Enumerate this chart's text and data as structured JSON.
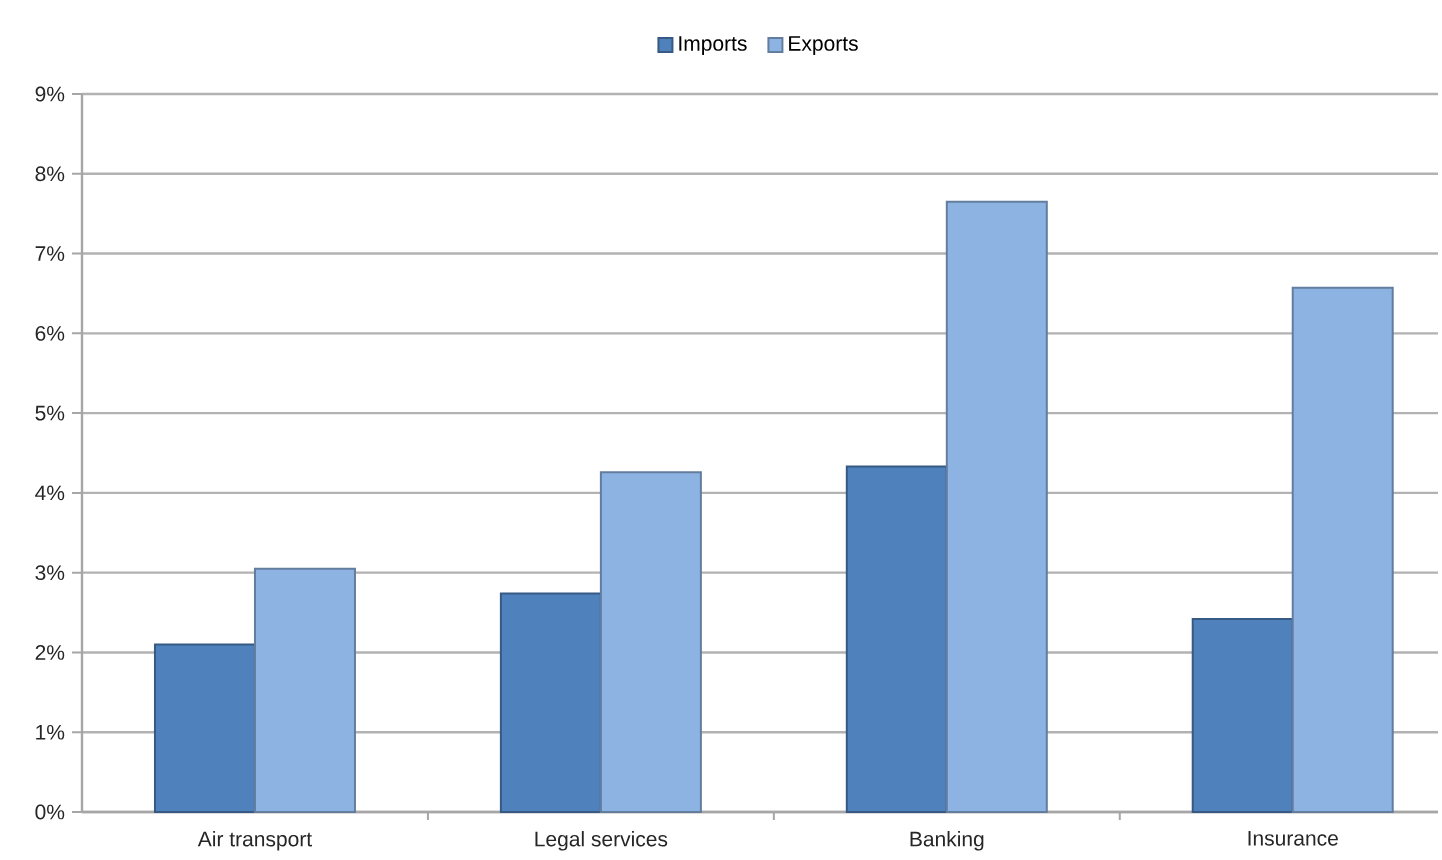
{
  "chart_data": {
    "type": "bar",
    "categories": [
      "Air transport",
      "Legal services",
      "Banking",
      "Insurance"
    ],
    "series": [
      {
        "name": "Imports",
        "color": "#4f81bd",
        "values": [
          2.1,
          2.74,
          4.33,
          2.42
        ]
      },
      {
        "name": "Exports",
        "color": "#8db3e2",
        "values": [
          3.05,
          4.26,
          7.65,
          6.57
        ]
      }
    ],
    "ylim": [
      0,
      9
    ],
    "yticks": [
      {
        "value": 0,
        "label": "0%"
      },
      {
        "value": 1,
        "label": "1%"
      },
      {
        "value": 2,
        "label": "2%"
      },
      {
        "value": 3,
        "label": "3%"
      },
      {
        "value": 4,
        "label": "4%"
      },
      {
        "value": 5,
        "label": "5%"
      },
      {
        "value": 6,
        "label": "6%"
      },
      {
        "value": 7,
        "label": "7%"
      },
      {
        "value": 8,
        "label": "8%"
      },
      {
        "value": 9,
        "label": "9%"
      }
    ],
    "grid": "y",
    "legend": "top"
  }
}
